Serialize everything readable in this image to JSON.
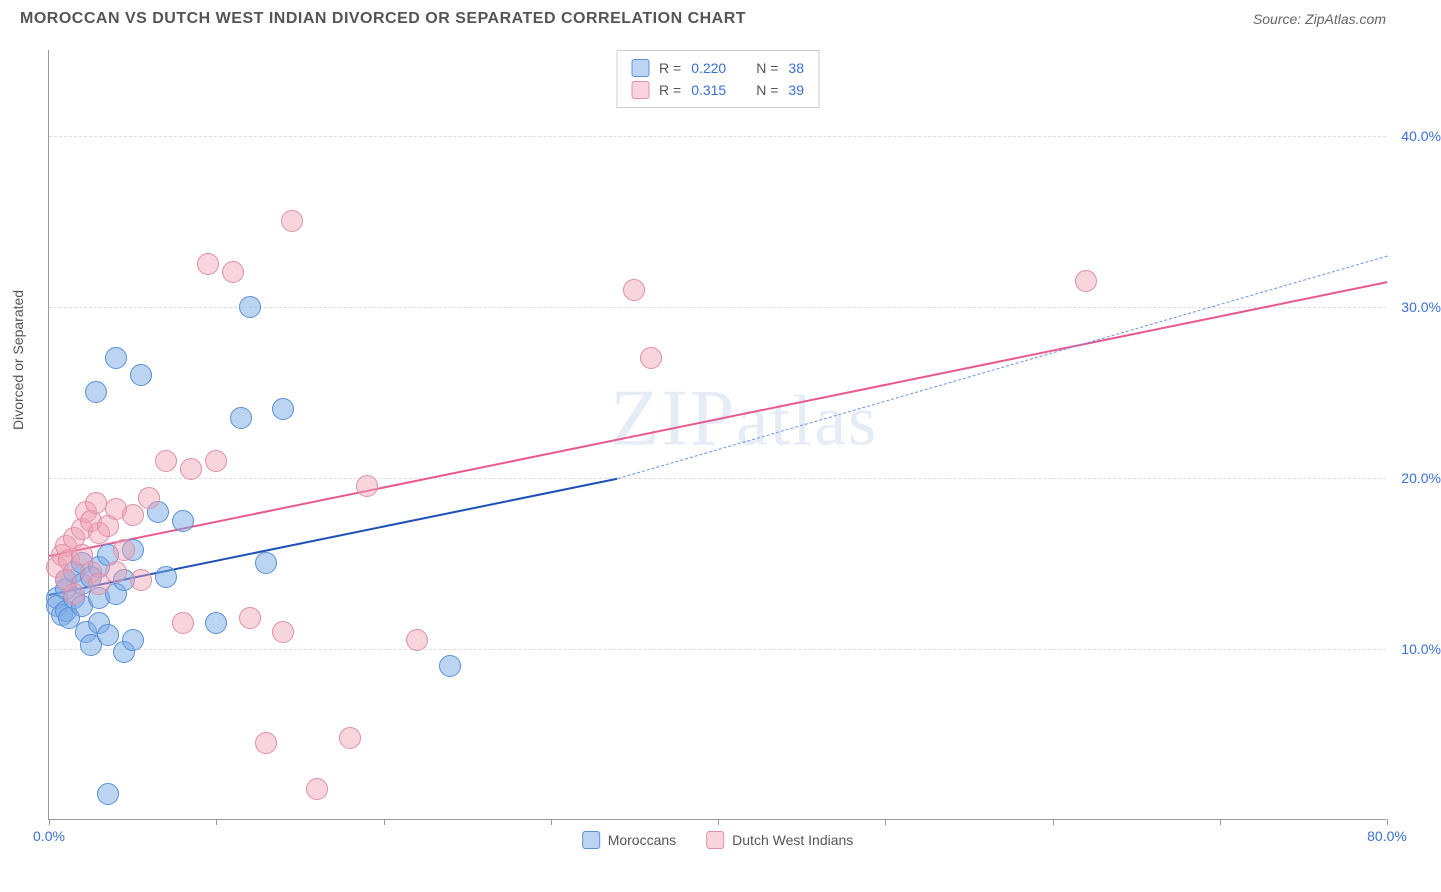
{
  "header": {
    "title": "MOROCCAN VS DUTCH WEST INDIAN DIVORCED OR SEPARATED CORRELATION CHART",
    "source": "Source: ZipAtlas.com"
  },
  "chart": {
    "type": "scatter",
    "ylabel": "Divorced or Separated",
    "background_color": "#ffffff",
    "grid_color": "#dddddd",
    "axis_color": "#999999",
    "label_fontsize": 14,
    "title_fontsize": 16,
    "xlim": [
      0,
      80
    ],
    "ylim": [
      0,
      45
    ],
    "x_ticks": [
      0,
      10,
      20,
      30,
      40,
      50,
      60,
      70,
      80
    ],
    "x_tick_labels": {
      "0": "0.0%",
      "80": "80.0%"
    },
    "y_gridlines": [
      10,
      20,
      30,
      40
    ],
    "y_tick_labels": {
      "10": "10.0%",
      "20": "20.0%",
      "30": "30.0%",
      "40": "40.0%"
    },
    "marker_radius": 11,
    "watermark": "ZIPatlas",
    "series": [
      {
        "name": "Moroccans",
        "color_fill": "rgba(120,170,230,0.5)",
        "color_stroke": "#5a8fd6",
        "trend_color": "#1e50b8",
        "trend_dashed_color": "#6a95e0",
        "R": "0.220",
        "N": "38",
        "trend_solid": {
          "x1": 0,
          "y1": 13.2,
          "x2": 34,
          "y2": 20.0
        },
        "trend_dashed": {
          "x1": 34,
          "y1": 20.0,
          "x2": 80,
          "y2": 33.0
        },
        "points": [
          {
            "x": 0.5,
            "y": 13.0
          },
          {
            "x": 0.5,
            "y": 12.5
          },
          {
            "x": 0.8,
            "y": 12.0
          },
          {
            "x": 1.0,
            "y": 12.2
          },
          {
            "x": 1.0,
            "y": 13.5
          },
          {
            "x": 1.2,
            "y": 11.8
          },
          {
            "x": 1.0,
            "y": 14.0
          },
          {
            "x": 1.5,
            "y": 13.0
          },
          {
            "x": 1.5,
            "y": 14.5
          },
          {
            "x": 2.0,
            "y": 12.5
          },
          {
            "x": 2.0,
            "y": 13.8
          },
          {
            "x": 2.0,
            "y": 15.0
          },
          {
            "x": 2.2,
            "y": 11.0
          },
          {
            "x": 2.5,
            "y": 14.2
          },
          {
            "x": 2.5,
            "y": 10.2
          },
          {
            "x": 3.0,
            "y": 11.5
          },
          {
            "x": 3.0,
            "y": 13.0
          },
          {
            "x": 3.0,
            "y": 14.8
          },
          {
            "x": 3.5,
            "y": 15.5
          },
          {
            "x": 3.5,
            "y": 10.8
          },
          {
            "x": 4.0,
            "y": 13.2
          },
          {
            "x": 4.5,
            "y": 9.8
          },
          {
            "x": 4.5,
            "y": 14.0
          },
          {
            "x": 5.0,
            "y": 10.5
          },
          {
            "x": 5.0,
            "y": 15.8
          },
          {
            "x": 2.8,
            "y": 25.0
          },
          {
            "x": 4.0,
            "y": 27.0
          },
          {
            "x": 5.5,
            "y": 26.0
          },
          {
            "x": 3.5,
            "y": 1.5
          },
          {
            "x": 6.5,
            "y": 18.0
          },
          {
            "x": 7.0,
            "y": 14.2
          },
          {
            "x": 8.0,
            "y": 17.5
          },
          {
            "x": 10.0,
            "y": 11.5
          },
          {
            "x": 11.5,
            "y": 23.5
          },
          {
            "x": 12.0,
            "y": 30.0
          },
          {
            "x": 13.0,
            "y": 15.0
          },
          {
            "x": 14.0,
            "y": 24.0
          },
          {
            "x": 24.0,
            "y": 9.0
          }
        ]
      },
      {
        "name": "Dutch West Indians",
        "color_fill": "rgba(240,160,180,0.45)",
        "color_stroke": "#e08fa5",
        "trend_color": "#e85a8f",
        "R": "0.315",
        "N": "39",
        "trend_solid": {
          "x1": 0,
          "y1": 15.5,
          "x2": 80,
          "y2": 31.5
        },
        "points": [
          {
            "x": 0.5,
            "y": 14.8
          },
          {
            "x": 0.8,
            "y": 15.5
          },
          {
            "x": 1.0,
            "y": 16.0
          },
          {
            "x": 1.0,
            "y": 14.0
          },
          {
            "x": 1.2,
            "y": 15.2
          },
          {
            "x": 1.5,
            "y": 16.5
          },
          {
            "x": 1.5,
            "y": 13.2
          },
          {
            "x": 2.0,
            "y": 17.0
          },
          {
            "x": 2.0,
            "y": 15.5
          },
          {
            "x": 2.2,
            "y": 18.0
          },
          {
            "x": 2.5,
            "y": 14.5
          },
          {
            "x": 2.5,
            "y": 17.5
          },
          {
            "x": 2.8,
            "y": 18.5
          },
          {
            "x": 3.0,
            "y": 16.8
          },
          {
            "x": 3.0,
            "y": 13.8
          },
          {
            "x": 3.5,
            "y": 17.2
          },
          {
            "x": 4.0,
            "y": 18.2
          },
          {
            "x": 4.0,
            "y": 14.5
          },
          {
            "x": 4.5,
            "y": 15.8
          },
          {
            "x": 5.0,
            "y": 17.8
          },
          {
            "x": 5.5,
            "y": 14.0
          },
          {
            "x": 6.0,
            "y": 18.8
          },
          {
            "x": 7.0,
            "y": 21.0
          },
          {
            "x": 8.0,
            "y": 11.5
          },
          {
            "x": 8.5,
            "y": 20.5
          },
          {
            "x": 9.5,
            "y": 32.5
          },
          {
            "x": 10.0,
            "y": 21.0
          },
          {
            "x": 11.0,
            "y": 32.0
          },
          {
            "x": 12.0,
            "y": 11.8
          },
          {
            "x": 13.0,
            "y": 4.5
          },
          {
            "x": 14.0,
            "y": 11.0
          },
          {
            "x": 14.5,
            "y": 35.0
          },
          {
            "x": 16.0,
            "y": 1.8
          },
          {
            "x": 18.0,
            "y": 4.8
          },
          {
            "x": 19.0,
            "y": 19.5
          },
          {
            "x": 22.0,
            "y": 10.5
          },
          {
            "x": 35.0,
            "y": 31.0
          },
          {
            "x": 36.0,
            "y": 27.0
          },
          {
            "x": 62.0,
            "y": 31.5
          }
        ]
      }
    ],
    "legend_top": {
      "label_R": "R =",
      "label_N": "N ="
    },
    "legend_bottom": [
      {
        "swatch": "blue",
        "label": "Moroccans"
      },
      {
        "swatch": "pink",
        "label": "Dutch West Indians"
      }
    ]
  }
}
